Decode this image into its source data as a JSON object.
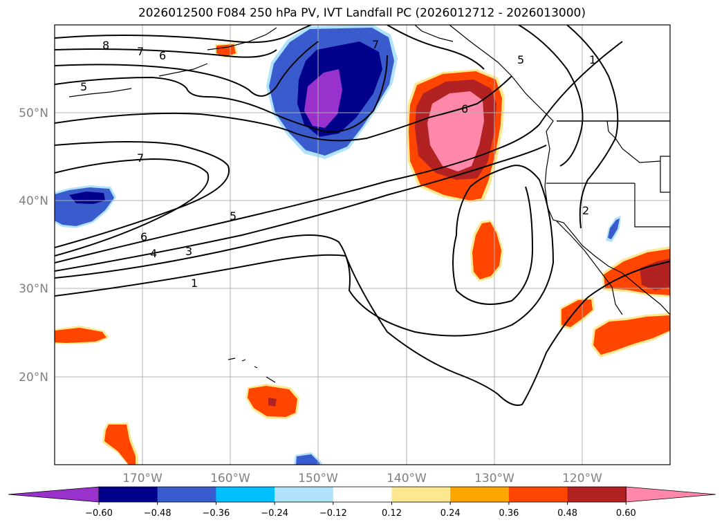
{
  "title": "2026012500 F084 250 hPa PV, IVT Landfall PC (2026012712 - 2026013000)",
  "map": {
    "lat_labels": [
      "50°N",
      "40°N",
      "30°N",
      "20°N"
    ],
    "lon_labels": [
      "170°W",
      "160°W",
      "150°W",
      "140°W",
      "130°W",
      "120°W"
    ],
    "contour_labels": [
      "8",
      "7",
      "6",
      "5",
      "7",
      "7",
      "5",
      "6",
      "4",
      "3",
      "1",
      "5",
      "6",
      "1",
      "2"
    ],
    "colors": {
      "land_line": "#000000",
      "grid": "#b0b0b0",
      "contour": "#000000"
    }
  },
  "colorbar": {
    "colors": [
      "#9932cc",
      "#00008b",
      "#3a5bcd",
      "#00bfff",
      "#aee3fb",
      "#ffffff",
      "#fee88f",
      "#ffa500",
      "#ff4500",
      "#b22222",
      "#ff88aa"
    ],
    "tick_labels": [
      "−0.60",
      "−0.48",
      "−0.36",
      "−0.24",
      "−0.12",
      "0.12",
      "0.24",
      "0.36",
      "0.48",
      "0.60"
    ]
  }
}
